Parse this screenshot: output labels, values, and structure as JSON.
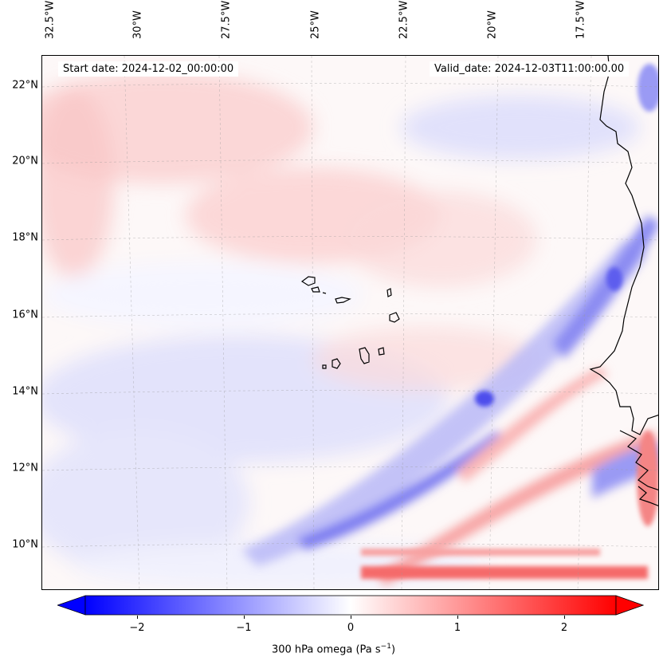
{
  "map": {
    "start_date_text": "Start date: 2024-12-02_00:00:00",
    "valid_date_text": "Valid_date: 2024-12-03T11:00:00.00",
    "longitude_labels": [
      "32.5°W",
      "30°W",
      "27.5°W",
      "25°W",
      "22.5°W",
      "20°W",
      "17.5°W"
    ],
    "latitude_labels": [
      "22°N",
      "20°N",
      "18°N",
      "16°N",
      "14°N",
      "12°N",
      "10°N"
    ],
    "features": [
      "coastline-west-africa",
      "cape-verde-islands"
    ]
  },
  "colorbar": {
    "ticks": [
      "−2",
      "−1",
      "0",
      "1",
      "2"
    ],
    "label_prefix": "300 hPa omega (Pa s",
    "label_exp": "−1",
    "label_suffix": ")",
    "min_color": "#0000ff",
    "mid_color": "#ffffff",
    "max_color": "#ff0000"
  }
}
